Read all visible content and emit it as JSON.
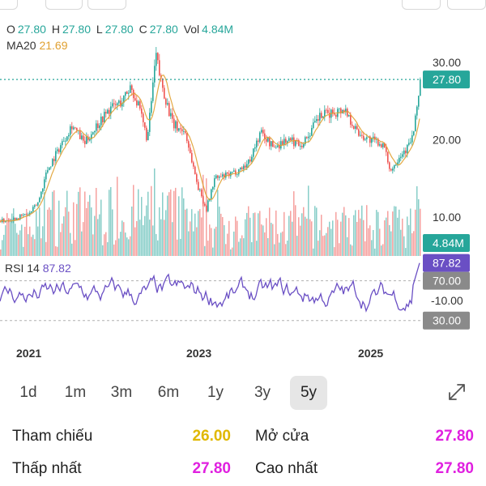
{
  "ohlc": {
    "o_label": "O",
    "o_value": "27.80",
    "h_label": "H",
    "h_value": "27.80",
    "l_label": "L",
    "l_value": "27.80",
    "c_label": "C",
    "c_value": "27.80",
    "vol_label": "Vol",
    "vol_value": "4.84M"
  },
  "ma": {
    "label": "MA20",
    "value": "21.69"
  },
  "rsi": {
    "label": "RSI 14",
    "value": "87.82"
  },
  "price_axis": {
    "ticks": [
      "30.00",
      "20.00",
      "10.00"
    ],
    "current": "27.80"
  },
  "volume_tag": "4.84M",
  "rsi_axis": {
    "current": "87.82",
    "upper": "70.00",
    "mid": "-10.00",
    "lower": "30.00"
  },
  "x_axis": [
    "2021",
    "2023",
    "2025"
  ],
  "periods": [
    "1d",
    "1m",
    "3m",
    "6m",
    "1y",
    "3y",
    "5y"
  ],
  "active_period": "5y",
  "stats": {
    "reference_label": "Tham chiếu",
    "reference_value": "26.00",
    "open_label": "Mở cửa",
    "open_value": "27.80",
    "low_label": "Thấp nhất",
    "low_value": "27.80",
    "high_label": "Cao nhất",
    "high_value": "27.80"
  },
  "colors": {
    "up": "#26a69a",
    "down": "#ef5350",
    "ma": "#e0a030",
    "rsi": "#6a4fc4",
    "reference": "#e0b800",
    "magenta": "#e020e0",
    "gray_tag": "#8a8a8a"
  },
  "icons": {
    "expand": "expand-arrows-icon"
  },
  "chart_data": {
    "type": "line",
    "x_labels": [
      "2021",
      "2023",
      "2025"
    ],
    "ylim": [
      5,
      32
    ],
    "price_keyframes": [
      [
        0,
        9.5
      ],
      [
        0.03,
        9.8
      ],
      [
        0.07,
        10.5
      ],
      [
        0.09,
        12
      ],
      [
        0.11,
        16
      ],
      [
        0.14,
        19
      ],
      [
        0.17,
        22
      ],
      [
        0.2,
        19.5
      ],
      [
        0.23,
        22
      ],
      [
        0.26,
        24
      ],
      [
        0.29,
        25
      ],
      [
        0.31,
        27
      ],
      [
        0.33,
        24
      ],
      [
        0.35,
        20
      ],
      [
        0.37,
        31
      ],
      [
        0.38,
        28
      ],
      [
        0.41,
        22
      ],
      [
        0.44,
        21
      ],
      [
        0.47,
        14
      ],
      [
        0.49,
        11
      ],
      [
        0.51,
        15
      ],
      [
        0.55,
        15.5
      ],
      [
        0.59,
        17
      ],
      [
        0.62,
        21
      ],
      [
        0.65,
        19
      ],
      [
        0.68,
        20
      ],
      [
        0.72,
        19.5
      ],
      [
        0.76,
        23
      ],
      [
        0.79,
        23.5
      ],
      [
        0.82,
        24
      ],
      [
        0.85,
        21
      ],
      [
        0.88,
        20
      ],
      [
        0.91,
        19.5
      ],
      [
        0.93,
        16
      ],
      [
        0.95,
        18
      ],
      [
        0.97,
        19
      ],
      [
        0.985,
        21
      ],
      [
        1.0,
        27.8
      ]
    ],
    "rsi_range": [
      20,
      90
    ],
    "rsi_last": 87.82
  }
}
